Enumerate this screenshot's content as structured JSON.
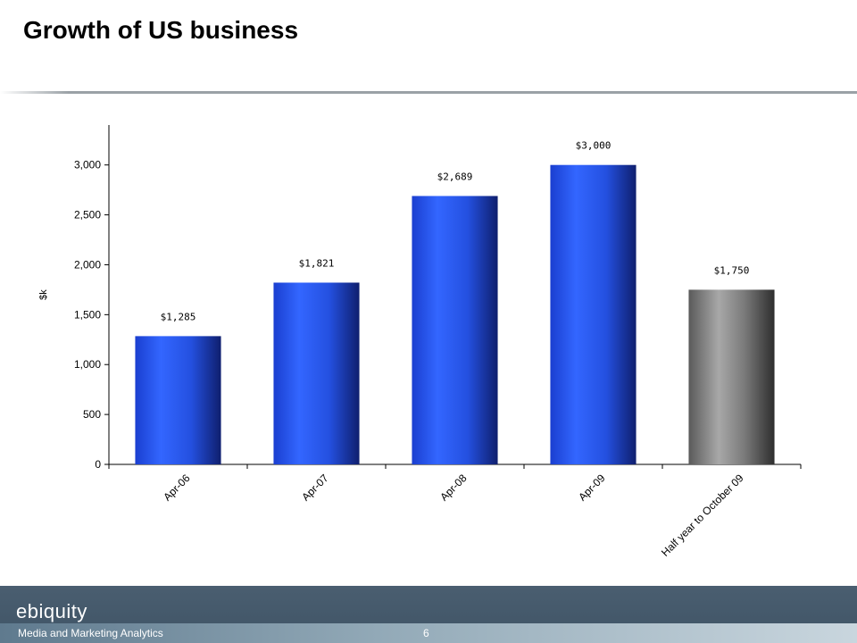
{
  "slide": {
    "title": "Growth of US business",
    "page_number": "6"
  },
  "footer": {
    "brand": "ebiquity",
    "tagline": "Media and Marketing Analytics"
  },
  "colors": {
    "bar_actual": "#2d5cf5",
    "bar_partial": "#8a8a8a",
    "footer_bg": "#4a5e70"
  },
  "chart_data": {
    "type": "bar",
    "title": "",
    "xlabel": "",
    "ylabel": "$k",
    "ylim": [
      0,
      3400
    ],
    "yticks": [
      0,
      500,
      1000,
      1500,
      2000,
      2500,
      3000
    ],
    "ytick_labels": [
      "0",
      "500",
      "1,000",
      "1,500",
      "2,000",
      "2,500",
      "3,000"
    ],
    "categories": [
      "Apr-06",
      "Apr-07",
      "Apr-08",
      "Apr-09",
      "Half year to October 09"
    ],
    "values": [
      1285,
      1821,
      2689,
      3000,
      1750
    ],
    "data_labels": [
      "$1,285",
      "$1,821",
      "$2,689",
      "$3,000",
      "$1,750"
    ],
    "bar_styles": [
      "actual",
      "actual",
      "actual",
      "actual",
      "partial"
    ],
    "grid": false,
    "legend": "none"
  }
}
